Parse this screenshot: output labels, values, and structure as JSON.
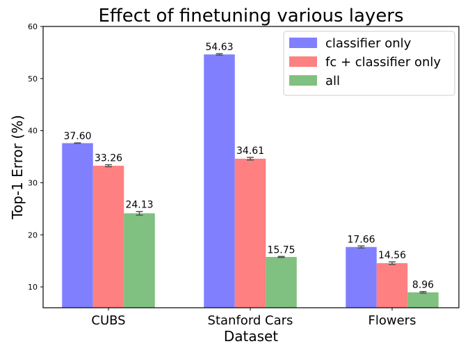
{
  "chart_data": {
    "type": "bar",
    "title": "Effect of finetuning various layers",
    "xlabel": "Dataset",
    "ylabel": "Top-1 Error (%)",
    "ylim": [
      6,
      60
    ],
    "yticks": [
      10,
      20,
      30,
      40,
      50,
      60
    ],
    "grid": false,
    "legend_position": "top-right",
    "categories": [
      "CUBS",
      "Stanford Cars",
      "Flowers"
    ],
    "series": [
      {
        "name": "classifier only",
        "color": "#8080ff",
        "values": [
          37.6,
          54.63,
          17.66
        ],
        "errors": [
          0.05,
          0.15,
          0.2
        ],
        "labels": [
          "37.60",
          "54.63",
          "17.66"
        ]
      },
      {
        "name": "fc + classifier only",
        "color": "#ff8080",
        "values": [
          33.26,
          34.61,
          14.56
        ],
        "errors": [
          0.2,
          0.25,
          0.25
        ],
        "labels": [
          "33.26",
          "34.61",
          "14.56"
        ]
      },
      {
        "name": "all",
        "color": "#80c080",
        "values": [
          24.13,
          15.75,
          8.96
        ],
        "errors": [
          0.35,
          0.1,
          0.15
        ],
        "labels": [
          "24.13",
          "15.75",
          "8.96"
        ]
      }
    ]
  }
}
